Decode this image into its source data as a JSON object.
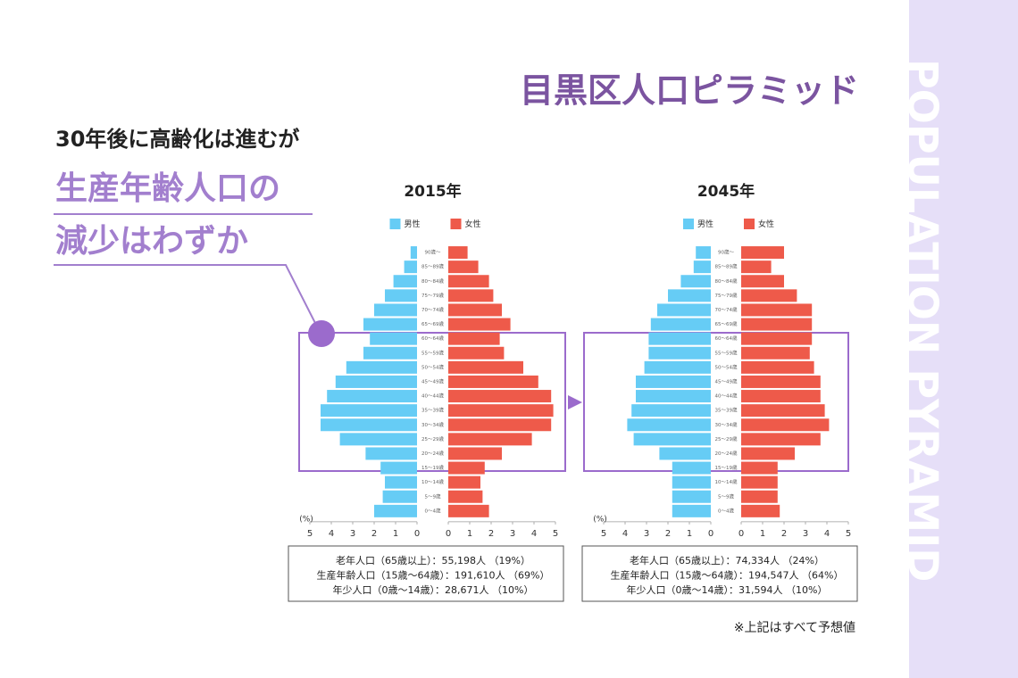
{
  "title": "目黒区人口ピラミッド",
  "lead": "30年後に高齢化は進むが",
  "highlight": [
    "生産年齢人口の",
    "減少はわずか"
  ],
  "side_text": "POPULATION PYRAMID",
  "note": "※上記はすべて予想値",
  "chart_data": [
    {
      "type": "bar",
      "title": "2015年",
      "categories": [
        "90歳〜",
        "85〜89歳",
        "80〜84歳",
        "75〜79歳",
        "70〜74歳",
        "65〜69歳",
        "60〜64歳",
        "55〜59歳",
        "50〜54歳",
        "45〜49歳",
        "40〜44歳",
        "35〜39歳",
        "30〜34歳",
        "25〜29歳",
        "20〜24歳",
        "15〜19歳",
        "10〜14歳",
        "5〜9歳",
        "0〜4歳"
      ],
      "series": [
        {
          "name": "男性",
          "color": "#66ccf5",
          "values": [
            0.3,
            0.6,
            1.1,
            1.5,
            2.0,
            2.5,
            2.2,
            2.5,
            3.3,
            3.8,
            4.2,
            4.5,
            4.5,
            3.6,
            2.4,
            1.7,
            1.5,
            1.6,
            2.0
          ]
        },
        {
          "name": "女性",
          "color": "#ee5a4a",
          "values": [
            0.9,
            1.4,
            1.9,
            2.1,
            2.5,
            2.9,
            2.4,
            2.6,
            3.5,
            4.2,
            4.8,
            4.9,
            4.8,
            3.9,
            2.5,
            1.7,
            1.5,
            1.6,
            1.9
          ]
        }
      ],
      "xlim": [
        0,
        5
      ],
      "xticks": [
        0,
        1,
        2,
        3,
        4,
        5
      ],
      "x_label": "(%)",
      "summary": [
        "老年人口（65歳以上）：55,198人 （19%）",
        "生産年齢人口（15歳〜64歳）：191,610人 （69%）",
        "年少人口（0歳〜14歳）：28,671人 （10%）"
      ]
    },
    {
      "type": "bar",
      "title": "2045年",
      "categories": [
        "90歳〜",
        "85〜89歳",
        "80〜84歳",
        "75〜79歳",
        "70〜74歳",
        "65〜69歳",
        "60〜64歳",
        "55〜59歳",
        "50〜54歳",
        "45〜49歳",
        "40〜44歳",
        "35〜39歳",
        "30〜34歳",
        "25〜29歳",
        "20〜24歳",
        "15〜19歳",
        "10〜14歳",
        "5〜9歳",
        "0〜4歳"
      ],
      "series": [
        {
          "name": "男性",
          "color": "#66ccf5",
          "values": [
            0.7,
            0.8,
            1.4,
            2.0,
            2.5,
            2.8,
            2.9,
            2.9,
            3.1,
            3.5,
            3.5,
            3.7,
            3.9,
            3.6,
            2.4,
            1.8,
            1.8,
            1.8,
            1.8
          ]
        },
        {
          "name": "女性",
          "color": "#ee5a4a",
          "values": [
            2.0,
            1.4,
            2.0,
            2.6,
            3.3,
            3.3,
            3.3,
            3.2,
            3.4,
            3.7,
            3.7,
            3.9,
            4.1,
            3.7,
            2.5,
            1.7,
            1.7,
            1.7,
            1.8
          ]
        }
      ],
      "xlim": [
        0,
        5
      ],
      "xticks": [
        0,
        1,
        2,
        3,
        4,
        5
      ],
      "x_label": "(%)",
      "summary": [
        "老年人口（65歳以上）：74,334人 （24%）",
        "生産年齢人口（15歳〜64歳）：194,547人 （64%）",
        "年少人口（0歳〜14歳）：31,594人 （10%）"
      ]
    }
  ]
}
